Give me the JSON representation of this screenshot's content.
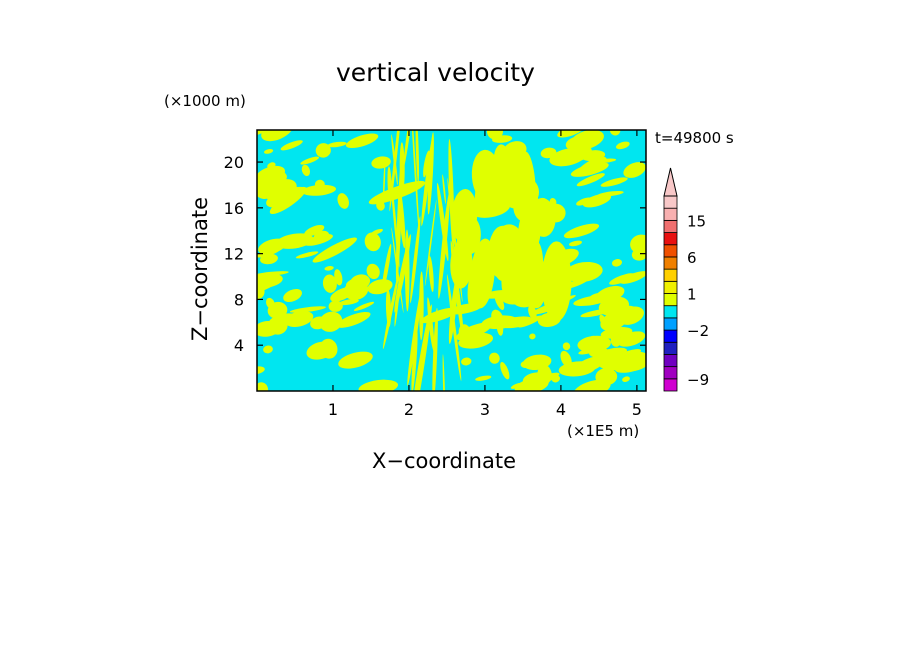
{
  "chart_data": {
    "type": "heatmap",
    "title": "vertical velocity",
    "xlabel": "X−coordinate",
    "ylabel": "Z−coordinate",
    "x_unit": "(×1E5 m)",
    "y_unit": "(×1000 m)",
    "time_label": "t=49800 s",
    "xlim": [
      0,
      5.12
    ],
    "ylim": [
      0,
      22.8
    ],
    "xticks": [
      1,
      2,
      3,
      4,
      5
    ],
    "yticks": [
      4,
      8,
      12,
      16,
      20
    ],
    "colorbar": {
      "levels": [
        -11,
        -9,
        -7,
        -5,
        -3,
        -2,
        -1,
        0,
        1,
        2,
        3,
        6,
        9,
        12,
        15,
        18,
        21
      ],
      "colors": [
        "#d000d0",
        "#a000c0",
        "#7000c0",
        "#2020c0",
        "#0000ff",
        "#00a0ff",
        "#00e6f0",
        "#e0ff00",
        "#f0f000",
        "#ffd000",
        "#f08000",
        "#f05000",
        "#e81010",
        "#f07070",
        "#f8b0b0",
        "#f8c8c8"
      ],
      "tick_labels": [
        "15",
        "6",
        "1",
        "−2",
        "−9"
      ],
      "tick_values": [
        15,
        6,
        1,
        -2,
        -9
      ],
      "extend": "max"
    },
    "field_colors": {
      "updraft": "#e0ff00",
      "downdraft": "#00e6f0"
    }
  }
}
